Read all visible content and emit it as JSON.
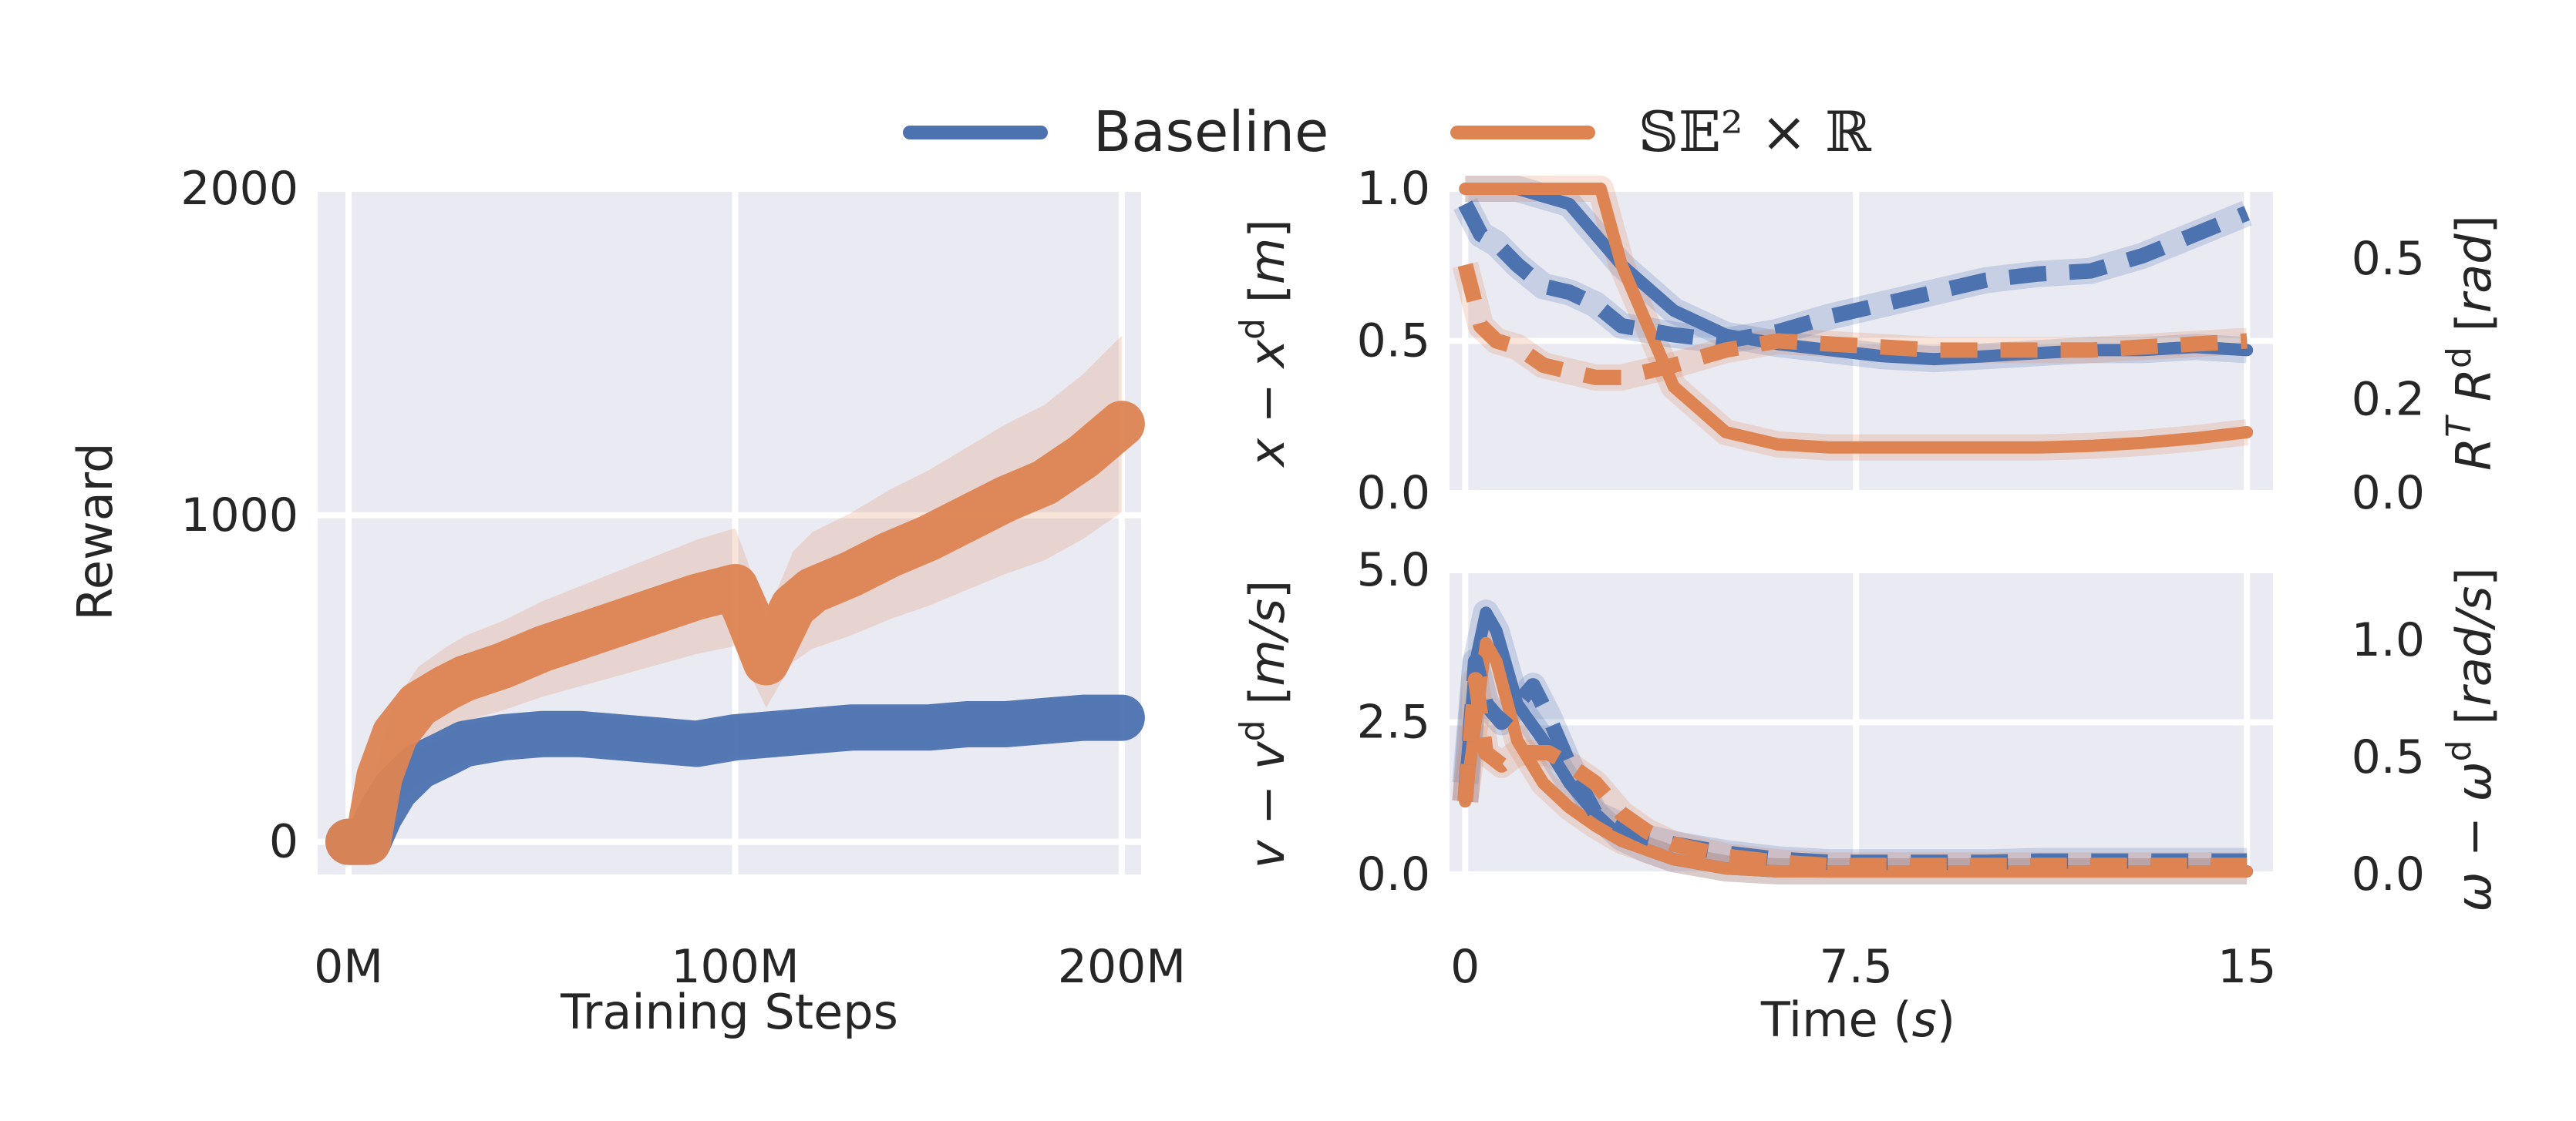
{
  "legend": {
    "baseline_label": "Baseline",
    "se2_label": "𝕊𝔼² × ℝ",
    "colors": {
      "baseline": "#4c72b0",
      "se2": "#dd8452"
    }
  },
  "chart_data": [
    {
      "type": "line",
      "panel": "training-reward",
      "xlabel": "Training Steps",
      "ylabel": "Reward",
      "xlim": [
        -8,
        205
      ],
      "ylim": [
        -100,
        2000
      ],
      "x_ticks": [
        "0M",
        "100M",
        "200M"
      ],
      "x_tick_values": [
        0,
        100,
        200
      ],
      "y_ticks": [
        "0",
        "1000",
        "2000"
      ],
      "y_tick_values": [
        0,
        1000,
        2000
      ],
      "grid": true,
      "series": [
        {
          "name": "Baseline",
          "color": "#4c72b0",
          "x": [
            0,
            5,
            8,
            12,
            18,
            25,
            30,
            40,
            50,
            60,
            70,
            80,
            90,
            100,
            110,
            120,
            130,
            140,
            150,
            160,
            170,
            180,
            190,
            200
          ],
          "y": [
            0,
            0,
            80,
            160,
            230,
            270,
            300,
            320,
            330,
            330,
            320,
            310,
            300,
            320,
            330,
            340,
            350,
            350,
            350,
            360,
            360,
            370,
            380,
            380
          ]
        },
        {
          "name": "𝕊𝔼² × ℝ",
          "color": "#dd8452",
          "x": [
            0,
            5,
            8,
            12,
            18,
            25,
            30,
            40,
            50,
            60,
            70,
            80,
            90,
            100,
            103,
            108,
            115,
            120,
            130,
            140,
            150,
            160,
            170,
            180,
            190,
            200
          ],
          "y": [
            0,
            0,
            200,
            330,
            420,
            470,
            500,
            540,
            590,
            630,
            670,
            710,
            750,
            780,
            700,
            550,
            720,
            770,
            820,
            880,
            930,
            990,
            1050,
            1100,
            1180,
            1280
          ]
        }
      ]
    },
    {
      "type": "line",
      "panel": "position-rotation-error",
      "xlabel": "",
      "ylabel": "x − x^d [m]",
      "ylabel_right": "R^T R^d [rad]",
      "xlim": [
        -0.3,
        15.5
      ],
      "ylim": [
        0,
        1.0
      ],
      "y_ticks": [
        "0.0",
        "0.5",
        "1.0"
      ],
      "y_tick_values": [
        0,
        0.5,
        1.0
      ],
      "y_right_ticks": [
        "0.0",
        "0.2",
        "0.5"
      ],
      "y_right_tick_values": [
        0.0,
        0.2,
        0.5
      ],
      "grid": true,
      "series": [
        {
          "name": "Baseline position",
          "color": "#4c72b0",
          "style": "solid",
          "x": [
            0,
            1,
            2,
            3,
            4,
            5,
            6,
            7,
            8,
            9,
            10,
            11,
            12,
            13,
            14,
            15
          ],
          "y": [
            2.0,
            1.5,
            0.95,
            0.75,
            0.6,
            0.52,
            0.49,
            0.47,
            0.45,
            0.44,
            0.45,
            0.46,
            0.47,
            0.47,
            0.48,
            0.47
          ]
        },
        {
          "name": "𝕊𝔼² × ℝ position",
          "color": "#dd8452",
          "style": "solid",
          "x": [
            0,
            1,
            2,
            2.6,
            3,
            4,
            5,
            6,
            7,
            8,
            9,
            10,
            11,
            12,
            13,
            14,
            15
          ],
          "y": [
            2.0,
            2.0,
            1.6,
            1.1,
            0.75,
            0.35,
            0.2,
            0.16,
            0.15,
            0.15,
            0.15,
            0.15,
            0.15,
            0.155,
            0.165,
            0.18,
            0.2
          ]
        },
        {
          "name": "Baseline rotation",
          "color": "#4c72b0",
          "style": "dashed",
          "x": [
            0,
            0.3,
            0.6,
            1,
            1.5,
            2,
            2.5,
            3,
            4,
            5,
            6,
            7,
            8,
            9,
            10,
            11,
            12,
            13,
            14,
            15
          ],
          "y": [
            0.95,
            0.85,
            0.82,
            0.75,
            0.68,
            0.66,
            0.62,
            0.55,
            0.52,
            0.5,
            0.53,
            0.58,
            0.62,
            0.66,
            0.7,
            0.72,
            0.73,
            0.78,
            0.85,
            0.92
          ]
        },
        {
          "name": "𝕊𝔼² × ℝ rotation",
          "color": "#dd8452",
          "style": "dashed",
          "x": [
            0,
            0.3,
            0.6,
            1,
            1.5,
            2,
            2.5,
            3,
            4,
            5,
            6,
            7,
            8,
            9,
            10,
            11,
            12,
            13,
            14,
            15
          ],
          "y": [
            0.75,
            0.55,
            0.5,
            0.48,
            0.42,
            0.4,
            0.38,
            0.38,
            0.42,
            0.47,
            0.5,
            0.49,
            0.48,
            0.47,
            0.47,
            0.47,
            0.47,
            0.48,
            0.49,
            0.5
          ]
        }
      ]
    },
    {
      "type": "line",
      "panel": "velocity-error",
      "xlabel": "Time (s)",
      "ylabel": "v − v^d [m/s]",
      "ylabel_right": "ω − ω^d [rad/s]",
      "xlim": [
        -0.3,
        15.5
      ],
      "ylim": [
        0,
        5.0
      ],
      "x_ticks": [
        "0",
        "7.5",
        "15"
      ],
      "x_tick_values": [
        0,
        7.5,
        15
      ],
      "y_ticks": [
        "0.0",
        "2.5",
        "5.0"
      ],
      "y_tick_values": [
        0,
        2.5,
        5.0
      ],
      "y_right_ticks": [
        "0.0",
        "0.5",
        "1.0"
      ],
      "y_right_tick_values": [
        0.0,
        0.5,
        1.0
      ],
      "grid": true,
      "series": [
        {
          "name": "Baseline linear velocity",
          "color": "#4c72b0",
          "style": "solid",
          "x": [
            0,
            0.2,
            0.4,
            0.6,
            1,
            1.5,
            2,
            2.5,
            3,
            3.5,
            4,
            5,
            6,
            7,
            8,
            9,
            10,
            11,
            12,
            13,
            14,
            15
          ],
          "y": [
            1.5,
            3.5,
            4.3,
            4.0,
            2.8,
            2.2,
            1.5,
            1.0,
            0.6,
            0.4,
            0.25,
            0.1,
            0.05,
            0.05,
            0.05,
            0.05,
            0.05,
            0.05,
            0.05,
            0.05,
            0.05,
            0.05
          ]
        },
        {
          "name": "𝕊𝔼² × ℝ linear velocity",
          "color": "#dd8452",
          "style": "solid",
          "x": [
            0,
            0.2,
            0.4,
            0.6,
            1,
            1.5,
            2,
            2.5,
            3,
            3.5,
            4,
            5,
            6,
            7,
            8,
            9,
            10,
            11,
            12,
            13,
            14,
            15
          ],
          "y": [
            1.2,
            2.5,
            3.8,
            3.5,
            2.2,
            1.5,
            1.1,
            0.8,
            0.55,
            0.4,
            0.25,
            0.1,
            0.05,
            0.05,
            0.05,
            0.05,
            0.05,
            0.05,
            0.05,
            0.05,
            0.05,
            0.05
          ]
        },
        {
          "name": "Baseline angular velocity",
          "color": "#4c72b0",
          "style": "dashed",
          "x": [
            0,
            0.2,
            0.4,
            0.7,
            1,
            1.3,
            1.6,
            2,
            2.5,
            3,
            3.5,
            4,
            5,
            6,
            7,
            8,
            9,
            10,
            11,
            12,
            13,
            14,
            15
          ],
          "y": [
            1.2,
            3.5,
            2.8,
            2.5,
            2.8,
            3.1,
            2.6,
            1.8,
            1.0,
            0.8,
            0.6,
            0.5,
            0.35,
            0.25,
            0.2,
            0.2,
            0.2,
            0.2,
            0.22,
            0.22,
            0.22,
            0.22,
            0.22
          ]
        },
        {
          "name": "𝕊𝔼² × ℝ angular velocity",
          "color": "#dd8452",
          "style": "dashed",
          "x": [
            0,
            0.2,
            0.4,
            0.7,
            1,
            1.3,
            1.6,
            2,
            2.5,
            3,
            3.5,
            4,
            5,
            6,
            7,
            8,
            9,
            10,
            11,
            12,
            13,
            14,
            15
          ],
          "y": [
            1.2,
            3.2,
            2.0,
            1.8,
            2.0,
            2.0,
            2.0,
            1.8,
            1.5,
            1.0,
            0.7,
            0.5,
            0.3,
            0.2,
            0.15,
            0.15,
            0.15,
            0.15,
            0.15,
            0.15,
            0.15,
            0.15,
            0.15
          ]
        }
      ]
    }
  ]
}
